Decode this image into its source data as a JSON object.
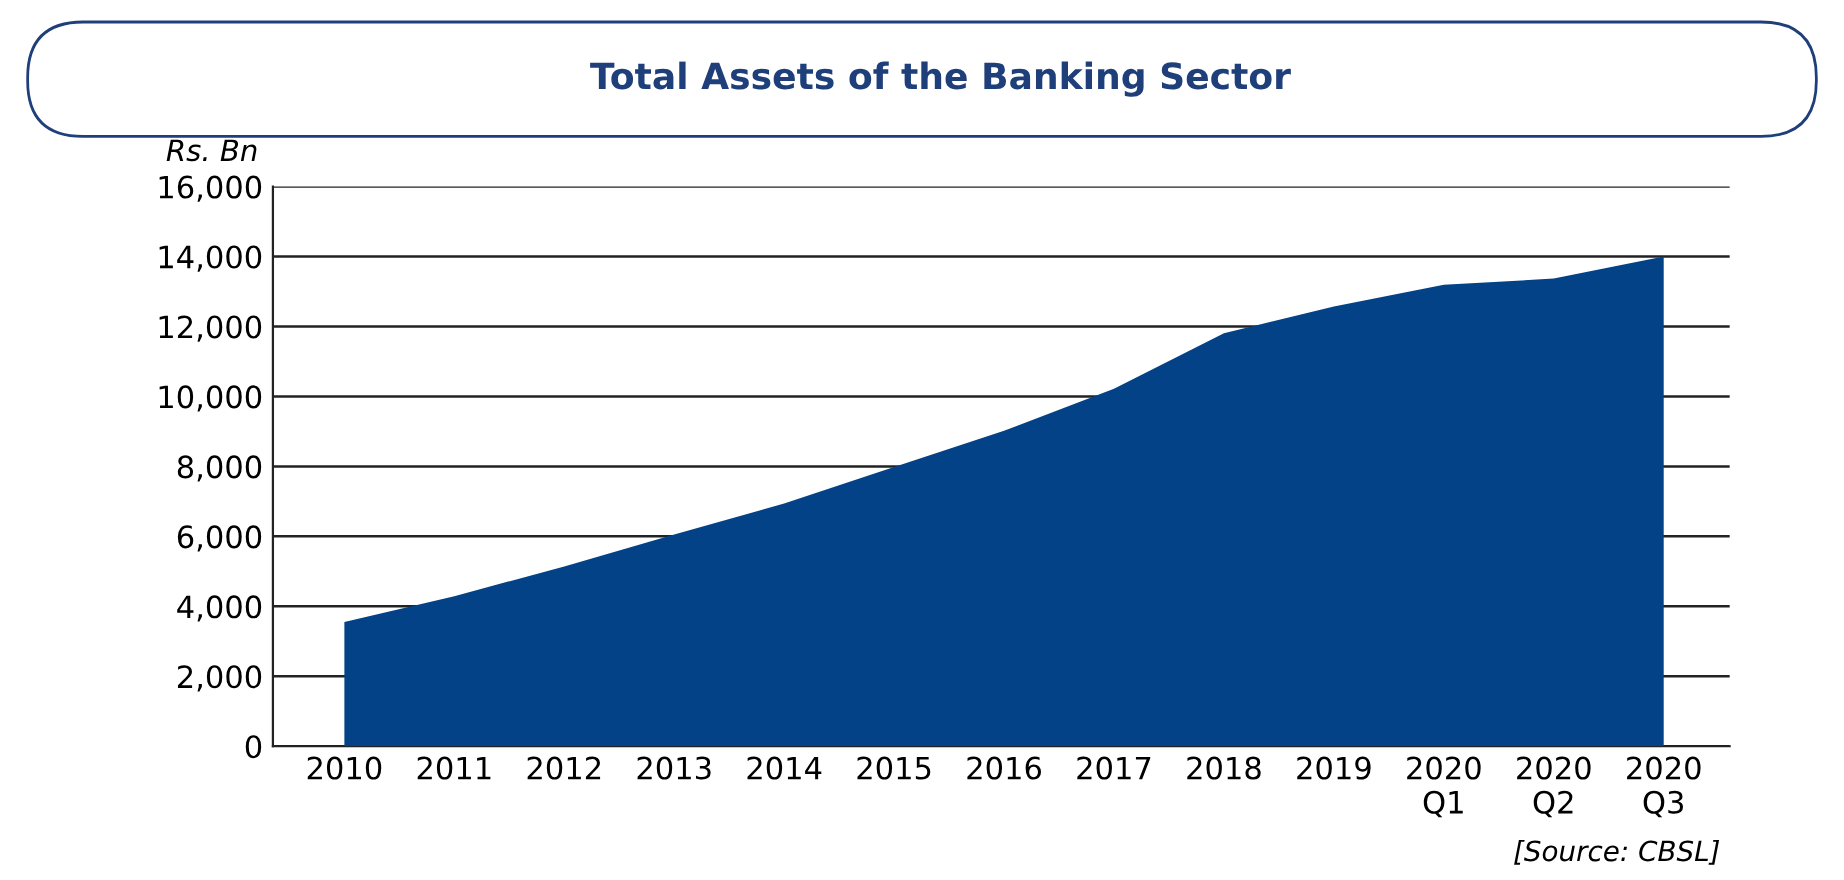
{
  "chart_data": {
    "type": "area",
    "title": "Total Assets of the Banking Sector",
    "ylabel": "Rs. Bn",
    "categories": [
      "2010",
      "2011",
      "2012",
      "2013",
      "2014",
      "2015",
      "2016",
      "2017",
      "2018",
      "2019",
      "2020\nQ1",
      "2020\nQ2",
      "2020\nQ3"
    ],
    "series": [
      {
        "color": "#034286",
        "values": [
          3550,
          4290,
          5140,
          6050,
          6940,
          7980,
          9020,
          10220,
          11810,
          12570,
          13190,
          13370,
          14000
        ]
      }
    ],
    "ylim": [
      0,
      16000
    ],
    "yticks": [
      {
        "value": 0,
        "label": "0"
      },
      {
        "value": 2000,
        "label": "2,000"
      },
      {
        "value": 4000,
        "label": "4,000"
      },
      {
        "value": 6000,
        "label": "6,000"
      },
      {
        "value": 8000,
        "label": "8,000"
      },
      {
        "value": 10000,
        "label": "10,000"
      },
      {
        "value": 12000,
        "label": "12,000"
      },
      {
        "value": 14000,
        "label": "14,000"
      },
      {
        "value": 16000,
        "label": "16,000"
      }
    ],
    "grid": "y",
    "legend": false,
    "annotations": [
      "[Source: CBSL]"
    ]
  }
}
